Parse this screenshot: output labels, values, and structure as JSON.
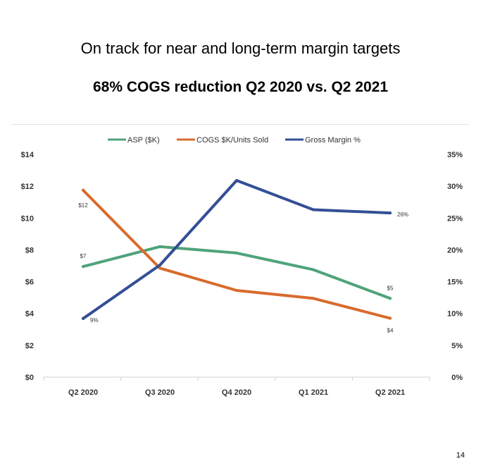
{
  "slide": {
    "title": "On track for near and long-term margin targets",
    "subtitle": "68% COGS reduction Q2 2020 vs. Q2 2021",
    "page_number": "14"
  },
  "chart_data": {
    "type": "line",
    "categories": [
      "Q2 2020",
      "Q3 2020",
      "Q4 2020",
      "Q1 2021",
      "Q2 2021"
    ],
    "series": [
      {
        "name": "ASP ($K)",
        "axis": "left",
        "color": "#4fa37b",
        "values": [
          6.95,
          8.2,
          7.8,
          6.75,
          4.95
        ],
        "labels": [
          {
            "index": 0,
            "text": "$7",
            "pos": "above"
          },
          {
            "index": 4,
            "text": "$5",
            "pos": "above"
          }
        ]
      },
      {
        "name": "COGS $K/Units Sold",
        "axis": "left",
        "color": "#d86b2c",
        "values": [
          11.75,
          6.85,
          5.45,
          4.95,
          3.7
        ],
        "labels": [
          {
            "index": 0,
            "text": "$12",
            "pos": "below"
          },
          {
            "index": 4,
            "text": "$4",
            "pos": "below"
          }
        ]
      },
      {
        "name": "Gross Margin %",
        "axis": "right",
        "color": "#334f95",
        "values": [
          9.2,
          17.6,
          30.9,
          26.3,
          25.8
        ],
        "labels": [
          {
            "index": 0,
            "text": "9%",
            "pos": "right"
          },
          {
            "index": 4,
            "text": "26%",
            "pos": "right"
          }
        ]
      }
    ],
    "y_left": {
      "min": 0,
      "max": 14,
      "ticks": [
        "$0",
        "$2",
        "$4",
        "$6",
        "$8",
        "$10",
        "$12",
        "$14"
      ]
    },
    "y_right": {
      "min": 0,
      "max": 35,
      "ticks": [
        "0%",
        "5%",
        "10%",
        "15%",
        "20%",
        "25%",
        "30%",
        "35%"
      ]
    },
    "grid": false,
    "legend_position": "top"
  }
}
